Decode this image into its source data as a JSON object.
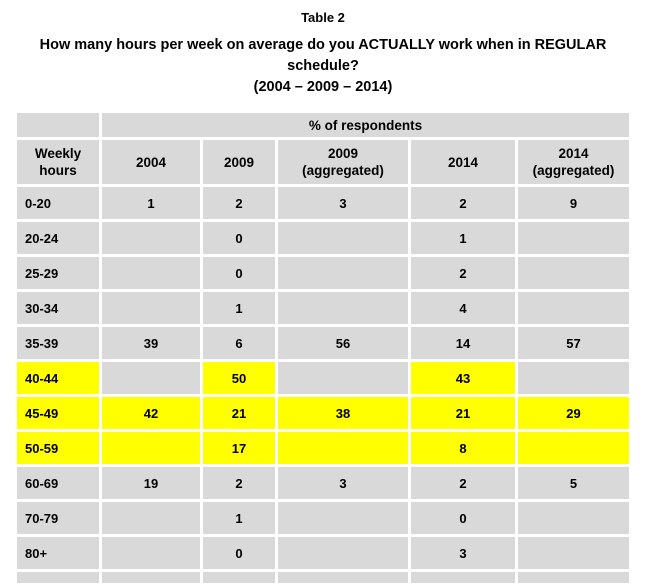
{
  "title": "Table 2",
  "question": "How many hours per week on average do you ACTUALLY work when in REGULAR schedule?",
  "years_line": "(2004 – 2009 – 2014)",
  "colors": {
    "cell_gray": "#d9d9d9",
    "highlight_yellow": "#ffff00",
    "text": "#000000",
    "background": "#ffffff"
  },
  "table": {
    "span_header": "% of respondents",
    "columns": [
      {
        "key": "weekly-hours",
        "label": "Weekly hours"
      },
      {
        "key": "2004",
        "label": "2004"
      },
      {
        "key": "2009",
        "label": "2009"
      },
      {
        "key": "2009-aggregated",
        "label": "2009 (aggregated)"
      },
      {
        "key": "2014",
        "label": "2014"
      },
      {
        "key": "2014-aggregated",
        "label": "2014 (aggregated)"
      }
    ],
    "rows": [
      {
        "label": "0-20",
        "values": [
          "1",
          "2",
          "3",
          "2",
          "9"
        ],
        "highlight": [
          false,
          false,
          false,
          false,
          false,
          false
        ],
        "spacer": false
      },
      {
        "label": "20-24",
        "values": [
          "",
          "0",
          "",
          "1",
          ""
        ],
        "highlight": [
          false,
          false,
          false,
          false,
          false,
          false
        ],
        "spacer": false
      },
      {
        "label": "25-29",
        "values": [
          "",
          "0",
          "",
          "2",
          ""
        ],
        "highlight": [
          false,
          false,
          false,
          false,
          false,
          false
        ],
        "spacer": false
      },
      {
        "label": "30-34",
        "values": [
          "",
          "1",
          "",
          "4",
          ""
        ],
        "highlight": [
          false,
          false,
          false,
          false,
          false,
          false
        ],
        "spacer": false
      },
      {
        "label": "35-39",
        "values": [
          "39",
          "6",
          "56",
          "14",
          "57"
        ],
        "highlight": [
          false,
          false,
          false,
          false,
          false,
          false
        ],
        "spacer": false
      },
      {
        "label": "40-44",
        "values": [
          "",
          "50",
          "",
          "43",
          ""
        ],
        "highlight": [
          true,
          false,
          true,
          false,
          true,
          false
        ],
        "spacer": false
      },
      {
        "label": "45-49",
        "values": [
          "42",
          "21",
          "38",
          "21",
          "29"
        ],
        "highlight": [
          true,
          true,
          true,
          true,
          true,
          true
        ],
        "spacer": false
      },
      {
        "label": "50-59",
        "values": [
          "",
          "17",
          "",
          "8",
          ""
        ],
        "highlight": [
          true,
          true,
          true,
          true,
          true,
          true
        ],
        "spacer": false
      },
      {
        "label": "60-69",
        "values": [
          "19",
          "2",
          "3",
          "2",
          "5"
        ],
        "highlight": [
          false,
          false,
          false,
          false,
          false,
          false
        ],
        "spacer": false
      },
      {
        "label": "70-79",
        "values": [
          "",
          "1",
          "",
          "0",
          ""
        ],
        "highlight": [
          false,
          false,
          false,
          false,
          false,
          false
        ],
        "spacer": false
      },
      {
        "label": "80+",
        "values": [
          "",
          "0",
          "",
          "3",
          ""
        ],
        "highlight": [
          false,
          false,
          false,
          false,
          false,
          false
        ],
        "spacer": false
      },
      {
        "label": "",
        "values": [
          "",
          "",
          "",
          "",
          ""
        ],
        "highlight": [
          false,
          false,
          false,
          false,
          false,
          false
        ],
        "spacer": true
      }
    ]
  }
}
